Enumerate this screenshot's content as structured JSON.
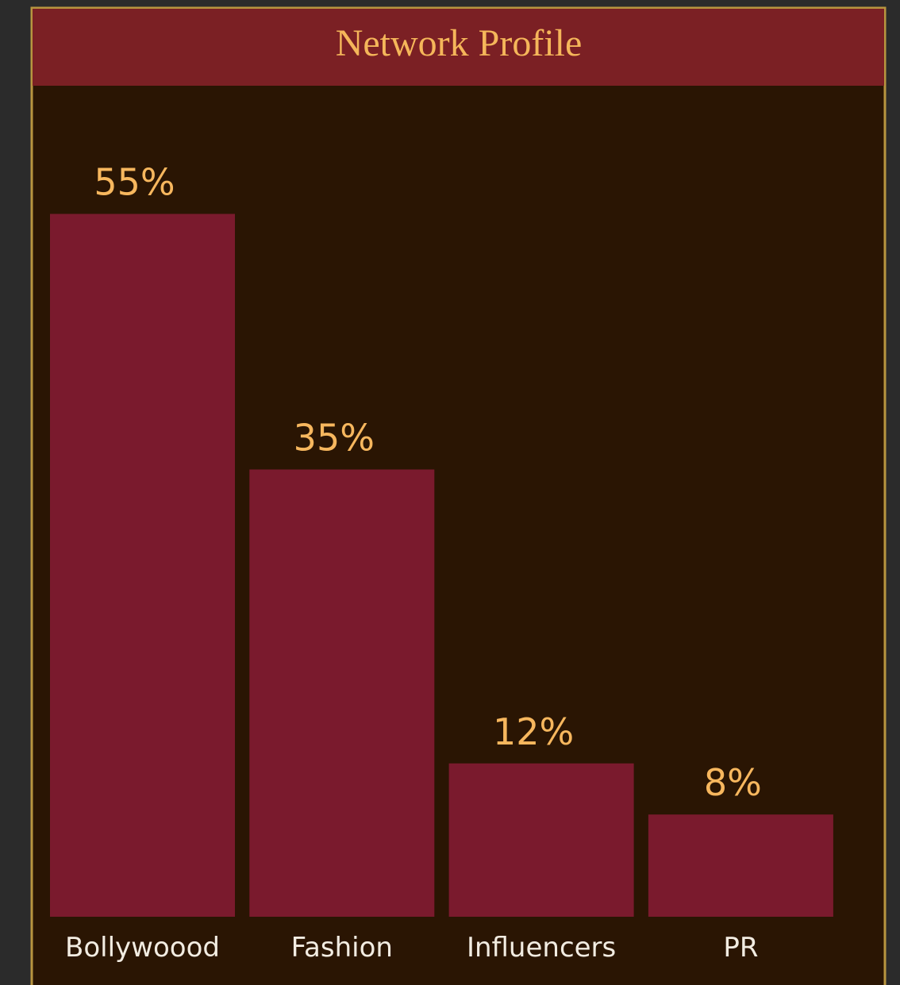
{
  "chart_data": {
    "type": "bar",
    "title": "Network Profile",
    "categories": [
      "Bollywoood",
      "Fashion",
      "Influencers",
      "PR"
    ],
    "values": [
      55,
      35,
      12,
      8
    ],
    "value_labels": [
      "55%",
      "35%",
      "12%",
      "8%"
    ],
    "color": "#7a1a2d"
  }
}
